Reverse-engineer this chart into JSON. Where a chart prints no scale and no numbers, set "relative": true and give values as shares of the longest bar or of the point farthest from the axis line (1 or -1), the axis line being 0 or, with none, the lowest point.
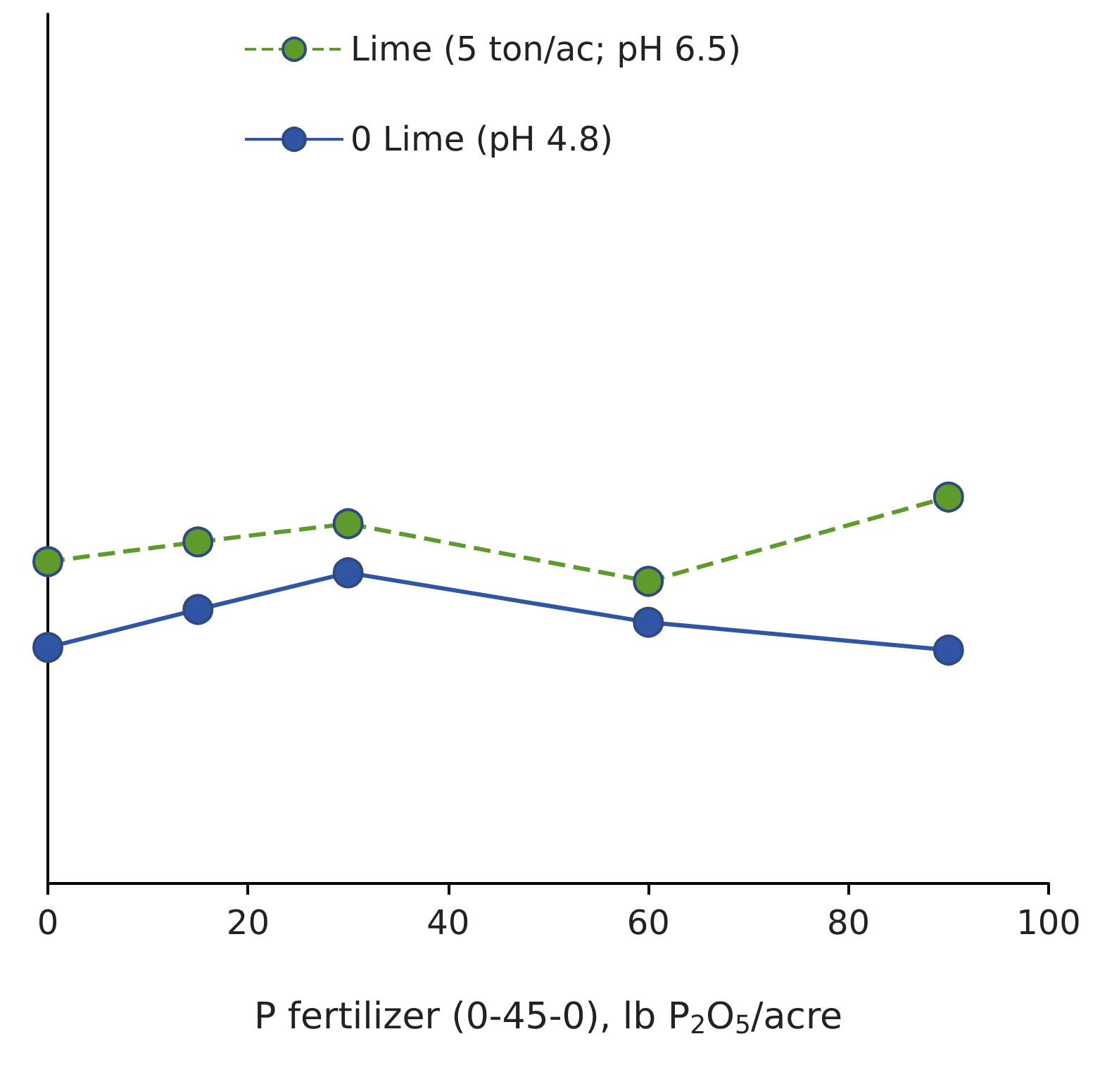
{
  "chart_data": {
    "type": "line",
    "xlabel": "P fertilizer (0-45-0), lb P$_{2}$O$_{5}$/acre",
    "x": [
      0,
      15,
      30,
      60,
      90
    ],
    "relative": true,
    "xlim": [
      0,
      100
    ],
    "xticks": [
      0,
      20,
      40,
      60,
      80,
      100
    ],
    "grid": false,
    "legend": "top",
    "marker": "circle",
    "series": [
      {
        "name": "Lime (5 ton/ac; pH 6.5)",
        "color": "#5f9a2c",
        "line_style": "dashed",
        "values": [
          0.833,
          0.884,
          0.931,
          0.782,
          1
        ]
      },
      {
        "name": "0 Lime (pH 4.8)",
        "color": "#2f55a4",
        "line_style": "solid",
        "values": [
          0.611,
          0.709,
          0.804,
          0.676,
          0.604
        ]
      }
    ]
  }
}
